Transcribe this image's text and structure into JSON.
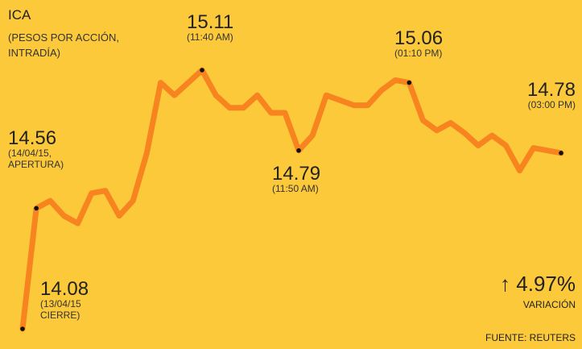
{
  "chart_data": {
    "type": "line",
    "title": "ICA",
    "subtitle": "(PESOS POR ACCIÓN,\nINTRADÍA)",
    "categories": [
      "(13/04/15\nCIERRE)",
      "(14/04/15,\nAPERTURA)",
      null,
      null,
      null,
      null,
      null,
      null,
      null,
      null,
      null,
      null,
      null,
      "(11:40 AM)",
      null,
      null,
      null,
      null,
      null,
      null,
      "(11:50 AM)",
      null,
      null,
      null,
      null,
      null,
      null,
      null,
      "(01:10 PM)",
      null,
      null,
      null,
      null,
      null,
      null,
      null,
      null,
      null,
      null,
      "(03:00 PM)"
    ],
    "series": [
      {
        "color": "#f7841f",
        "values": [
          14.08,
          14.56,
          14.59,
          14.53,
          14.5,
          14.62,
          14.63,
          14.53,
          14.59,
          14.78,
          15.06,
          15.01,
          15.06,
          15.11,
          15.01,
          14.96,
          14.96,
          15.01,
          14.94,
          14.94,
          14.79,
          14.85,
          15.01,
          14.99,
          14.97,
          14.97,
          15.03,
          15.07,
          15.06,
          14.91,
          14.87,
          14.9,
          14.86,
          14.81,
          14.85,
          14.81,
          14.71,
          14.8,
          14.79,
          14.78
        ]
      }
    ],
    "change": "↑ 4.97%",
    "change_label": "VARIACIÓN",
    "source": "FUENTE: REUTERS"
  }
}
